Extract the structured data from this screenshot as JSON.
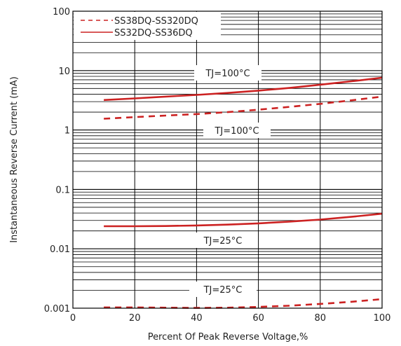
{
  "chart_data": {
    "type": "line",
    "title": "",
    "xlabel": "Percent Of Peak Reverse Voltage,%",
    "ylabel": "Instantaneous Reverse Current (mA)",
    "xlim": [
      0,
      100
    ],
    "ylim": [
      0.001,
      100
    ],
    "y_scale": "log",
    "x_ticks": [
      "0",
      "20",
      "40",
      "60",
      "80",
      "100"
    ],
    "y_ticks": [
      "100",
      "10",
      "1",
      "0.1",
      "0.01",
      "0.001"
    ],
    "grid": true,
    "legend_position": "top-left",
    "colors": {
      "series": "#cc2222",
      "grid": "#000000"
    },
    "series": [
      {
        "name": "SS32DQ-SS36DQ",
        "style": "solid",
        "condition": "TJ=100°C",
        "x": [
          10,
          20,
          30,
          40,
          50,
          60,
          70,
          80,
          90,
          100
        ],
        "y": [
          3.2,
          3.4,
          3.65,
          3.9,
          4.2,
          4.6,
          5.1,
          5.8,
          6.6,
          7.6
        ]
      },
      {
        "name": "SS38DQ-SS320DQ",
        "style": "dashed",
        "condition": "TJ=100°C",
        "x": [
          10,
          20,
          30,
          40,
          50,
          60,
          70,
          80,
          90,
          100
        ],
        "y": [
          1.55,
          1.65,
          1.75,
          1.85,
          2.0,
          2.2,
          2.45,
          2.75,
          3.15,
          3.65
        ]
      },
      {
        "name": "SS32DQ-SS36DQ",
        "style": "solid",
        "condition": "TJ=25°C",
        "x": [
          10,
          20,
          30,
          40,
          50,
          60,
          70,
          80,
          90,
          100
        ],
        "y": [
          0.024,
          0.024,
          0.0242,
          0.0247,
          0.0255,
          0.0268,
          0.0287,
          0.031,
          0.0345,
          0.039
        ]
      },
      {
        "name": "SS38DQ-SS320DQ",
        "style": "dashed",
        "condition": "TJ=25°C",
        "x": [
          10,
          20,
          30,
          40,
          50,
          60,
          70,
          80,
          90,
          100
        ],
        "y": [
          0.00103,
          0.00103,
          0.00102,
          0.00101,
          0.00102,
          0.00105,
          0.0011,
          0.00118,
          0.00128,
          0.00142
        ]
      }
    ],
    "annotations": [
      "TJ=100°C",
      "TJ=100°C",
      "TJ=25°C",
      "TJ=25°C"
    ]
  }
}
